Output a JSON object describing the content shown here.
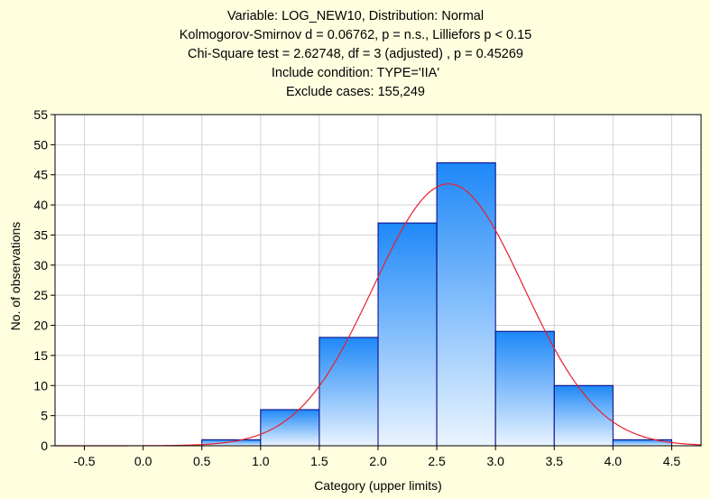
{
  "titles": {
    "line1": "Variable: LOG_NEW10, Distribution: Normal",
    "line2": "Kolmogorov-Smirnov d = 0.06762, p = n.s., Lilliefors p < 0.15",
    "line3": "Chi-Square test = 2.62748, df = 3 (adjusted) , p = 0.45269",
    "line4": "Include condition: TYPE='IIA'",
    "line5": "Exclude cases: 155,249"
  },
  "chart_data": {
    "type": "bar",
    "subtype": "histogram-with-normal-fit",
    "xlabel": "Category (upper limits)",
    "ylabel": "No. of observations",
    "xlim": [
      -0.75,
      4.75
    ],
    "ylim": [
      0,
      55
    ],
    "x_ticks": [
      -0.5,
      0.0,
      0.5,
      1.0,
      1.5,
      2.0,
      2.5,
      3.0,
      3.5,
      4.0,
      4.5
    ],
    "x_tick_labels": [
      "-0.5",
      "0.0",
      "0.5",
      "1.0",
      "1.5",
      "2.0",
      "2.5",
      "3.0",
      "3.5",
      "4.0",
      "4.5"
    ],
    "y_ticks": [
      0,
      5,
      10,
      15,
      20,
      25,
      30,
      35,
      40,
      45,
      50,
      55
    ],
    "y_tick_labels": [
      "0",
      "5",
      "10",
      "15",
      "20",
      "25",
      "30",
      "35",
      "40",
      "45",
      "50",
      "55"
    ],
    "bins": [
      {
        "lower": 0.5,
        "upper": 1.0,
        "count": 1
      },
      {
        "lower": 1.0,
        "upper": 1.5,
        "count": 6
      },
      {
        "lower": 1.5,
        "upper": 2.0,
        "count": 18
      },
      {
        "lower": 2.0,
        "upper": 2.5,
        "count": 37
      },
      {
        "lower": 2.5,
        "upper": 3.0,
        "count": 47
      },
      {
        "lower": 3.0,
        "upper": 3.5,
        "count": 19
      },
      {
        "lower": 3.5,
        "upper": 4.0,
        "count": 10
      },
      {
        "lower": 4.0,
        "upper": 4.5,
        "count": 1
      }
    ],
    "normal_fit": {
      "mean": 2.6,
      "sd": 0.64,
      "peak": 43.5
    },
    "grid": true,
    "colors": {
      "bar_top": "#1E88F8",
      "bar_bottom": "#EAF4FF",
      "bar_border": "#000080",
      "curve": "#E8202A",
      "grid": "#D4D4D4",
      "plot_background": "#FFFFFF",
      "page_background": "#FFFFE0"
    }
  }
}
